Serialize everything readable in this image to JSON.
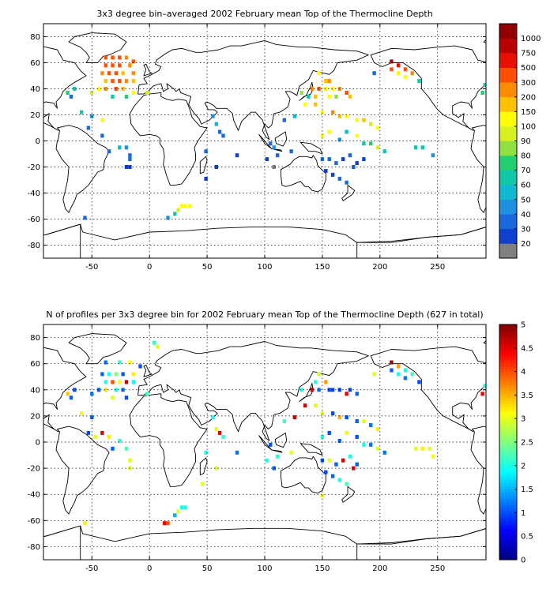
{
  "chart_data": [
    {
      "type": "heatmap",
      "title": "3x3 degree bin–averaged 2002 February mean Top of the Thermocline Depth",
      "xlim": [
        -92,
        292
      ],
      "ylim": [
        -90,
        90
      ],
      "xticks": [
        -50,
        0,
        50,
        100,
        150,
        200,
        250
      ],
      "yticks": [
        -80,
        -60,
        -40,
        -20,
        0,
        20,
        40,
        60,
        80
      ],
      "grid": true,
      "colorbar": {
        "position": "right",
        "labels": [
          "20",
          "30",
          "40",
          "50",
          "60",
          "70",
          "80",
          "90",
          "100",
          "150",
          "200",
          "300",
          "500",
          "750",
          "1000"
        ],
        "colors": [
          "#808080",
          "#1040d0",
          "#1a68dc",
          "#1e90e0",
          "#10b8d0",
          "#10c8a8",
          "#20d070",
          "#90e040",
          "#d8f020",
          "#ffff00",
          "#ffc000",
          "#ff8c00",
          "#ff5000",
          "#e81000",
          "#b80000",
          "#900000"
        ]
      },
      "cells": [
        [
          -38,
          64,
          12
        ],
        [
          -32,
          64,
          12
        ],
        [
          -26,
          64,
          12
        ],
        [
          -20,
          64,
          11
        ],
        [
          -14,
          61,
          12
        ],
        [
          -38,
          58,
          12
        ],
        [
          -32,
          58,
          12
        ],
        [
          -26,
          58,
          12
        ],
        [
          -17,
          58,
          11
        ],
        [
          -41,
          52,
          11
        ],
        [
          -35,
          52,
          12
        ],
        [
          -29,
          52,
          12
        ],
        [
          -23,
          52,
          10
        ],
        [
          -14,
          52,
          11
        ],
        [
          -38,
          46,
          10
        ],
        [
          -32,
          46,
          12
        ],
        [
          -26,
          46,
          12
        ],
        [
          -20,
          46,
          11
        ],
        [
          -14,
          46,
          10
        ],
        [
          -44,
          40,
          9
        ],
        [
          -38,
          40,
          11
        ],
        [
          -29,
          40,
          12
        ],
        [
          -23,
          40,
          10
        ],
        [
          -65,
          40,
          5
        ],
        [
          -71,
          37,
          6
        ],
        [
          -68,
          34,
          2
        ],
        [
          -50,
          37,
          8
        ],
        [
          -32,
          34,
          5
        ],
        [
          -20,
          34,
          6
        ],
        [
          -14,
          37,
          9
        ],
        [
          -2,
          37,
          8
        ],
        [
          -59,
          22,
          5
        ],
        [
          -50,
          19,
          3
        ],
        [
          -41,
          16,
          9
        ],
        [
          -53,
          10,
          2
        ],
        [
          -41,
          4,
          2
        ],
        [
          -26,
          -5,
          4
        ],
        [
          -20,
          -5,
          3
        ],
        [
          -35,
          -8,
          2
        ],
        [
          -17,
          -11,
          2
        ],
        [
          -17,
          -14,
          2
        ],
        [
          -20,
          -20,
          1
        ],
        [
          -17,
          -20,
          1
        ],
        [
          55,
          19,
          3
        ],
        [
          58,
          13,
          4
        ],
        [
          61,
          7,
          2
        ],
        [
          64,
          4,
          2
        ],
        [
          49,
          -8,
          2
        ],
        [
          76,
          -11,
          1
        ],
        [
          58,
          -20,
          1
        ],
        [
          49,
          -29,
          1
        ],
        [
          28,
          -50,
          9
        ],
        [
          31,
          -50,
          9
        ],
        [
          35,
          -50,
          9
        ],
        [
          25,
          -53,
          8
        ],
        [
          22,
          -56,
          5
        ],
        [
          16,
          -59,
          3
        ],
        [
          -56,
          -59,
          2
        ],
        [
          147,
          52,
          9
        ],
        [
          153,
          46,
          10
        ],
        [
          156,
          46,
          11
        ],
        [
          141,
          40,
          11
        ],
        [
          147,
          40,
          12
        ],
        [
          153,
          40,
          9
        ],
        [
          159,
          40,
          9
        ],
        [
          165,
          40,
          11
        ],
        [
          171,
          37,
          12
        ],
        [
          132,
          37,
          7
        ],
        [
          138,
          34,
          5
        ],
        [
          144,
          34,
          10
        ],
        [
          156,
          34,
          9
        ],
        [
          162,
          34,
          7
        ],
        [
          174,
          34,
          10
        ],
        [
          135,
          28,
          9
        ],
        [
          144,
          28,
          10
        ],
        [
          150,
          22,
          9
        ],
        [
          159,
          22,
          11
        ],
        [
          165,
          19,
          10
        ],
        [
          171,
          19,
          9
        ],
        [
          180,
          16,
          9
        ],
        [
          186,
          16,
          10
        ],
        [
          192,
          13,
          8
        ],
        [
          198,
          10,
          9
        ],
        [
          150,
          4,
          9
        ],
        [
          156,
          7,
          9
        ],
        [
          171,
          7,
          4
        ],
        [
          165,
          1,
          3
        ],
        [
          180,
          4,
          9
        ],
        [
          186,
          -2,
          5
        ],
        [
          192,
          -2,
          6
        ],
        [
          198,
          -5,
          8
        ],
        [
          204,
          -8,
          5
        ],
        [
          150,
          -14,
          2
        ],
        [
          156,
          -14,
          2
        ],
        [
          162,
          -17,
          2
        ],
        [
          168,
          -14,
          1
        ],
        [
          174,
          -11,
          2
        ],
        [
          180,
          -17,
          1
        ],
        [
          153,
          -23,
          1
        ],
        [
          159,
          -26,
          1
        ],
        [
          165,
          -29,
          2
        ],
        [
          171,
          -32,
          2
        ],
        [
          177,
          -20,
          2
        ],
        [
          186,
          -14,
          1
        ],
        [
          123,
          -8,
          2
        ],
        [
          111,
          -11,
          2
        ],
        [
          108,
          -5,
          3
        ],
        [
          105,
          -2,
          2
        ],
        [
          102,
          -14,
          1
        ],
        [
          108,
          -20,
          0
        ],
        [
          117,
          16,
          2
        ],
        [
          126,
          19,
          4
        ],
        [
          195,
          52,
          2
        ],
        [
          210,
          61,
          14
        ],
        [
          216,
          58,
          13
        ],
        [
          222,
          55,
          12
        ],
        [
          228,
          52,
          11
        ],
        [
          210,
          55,
          12
        ],
        [
          216,
          52,
          9
        ],
        [
          222,
          49,
          9
        ],
        [
          234,
          46,
          5
        ],
        [
          231,
          -5,
          5
        ],
        [
          237,
          -5,
          5
        ],
        [
          246,
          -11,
          3
        ],
        [
          291,
          43,
          5
        ],
        [
          289,
          37,
          6
        ]
      ]
    },
    {
      "type": "heatmap",
      "title": "N of profiles per 3x3 degree bin for 2002 February mean Top of the Thermocline Depth  (627 in total)",
      "xlim": [
        -92,
        292
      ],
      "ylim": [
        -90,
        90
      ],
      "xticks": [
        -50,
        0,
        50,
        100,
        150,
        200,
        250
      ],
      "yticks": [
        -80,
        -60,
        -40,
        -20,
        0,
        20,
        40,
        60,
        80
      ],
      "grid": true,
      "colorbar": {
        "position": "right",
        "min": 0,
        "max": 5,
        "labels": [
          "0",
          "0.5",
          "1",
          "1.5",
          "2",
          "2.5",
          "3",
          "3.5",
          "4",
          "4.5",
          "5"
        ]
      },
      "cells": [
        [
          -38,
          61,
          1.2
        ],
        [
          -26,
          61,
          2.1
        ],
        [
          -17,
          61,
          3.1
        ],
        [
          -8,
          58,
          1.0
        ],
        [
          -41,
          52,
          1.1
        ],
        [
          -35,
          52,
          2.0
        ],
        [
          -29,
          52,
          2.5
        ],
        [
          -23,
          52,
          1.1
        ],
        [
          -14,
          52,
          3.2
        ],
        [
          -38,
          46,
          2.0
        ],
        [
          -32,
          46,
          4.0
        ],
        [
          -26,
          46,
          3.1
        ],
        [
          -20,
          46,
          4.6
        ],
        [
          -14,
          46,
          1.9
        ],
        [
          -44,
          40,
          1.1
        ],
        [
          -38,
          40,
          3.3
        ],
        [
          -29,
          40,
          2.0
        ],
        [
          -23,
          40,
          1.2
        ],
        [
          -65,
          40,
          1.0
        ],
        [
          -71,
          37,
          3.4
        ],
        [
          -68,
          34,
          1.1
        ],
        [
          -50,
          37,
          1.2
        ],
        [
          -32,
          34,
          3.0
        ],
        [
          -20,
          34,
          1.0
        ],
        [
          -2,
          37,
          2.2
        ],
        [
          -59,
          22,
          3.1
        ],
        [
          -50,
          19,
          1.1
        ],
        [
          -41,
          7,
          4.6
        ],
        [
          -53,
          7,
          1.0
        ],
        [
          -47,
          4,
          3.0
        ],
        [
          -35,
          4,
          3.2
        ],
        [
          -26,
          1,
          2.1
        ],
        [
          -32,
          -5,
          1.1
        ],
        [
          -20,
          -5,
          2.2
        ],
        [
          -17,
          -14,
          3.0
        ],
        [
          -17,
          -20,
          2.9
        ],
        [
          4,
          76,
          2.1
        ],
        [
          7,
          73,
          3.0
        ],
        [
          55,
          19,
          2.0
        ],
        [
          58,
          10,
          3.0
        ],
        [
          61,
          7,
          4.5
        ],
        [
          64,
          4,
          2.1
        ],
        [
          49,
          -8,
          2.0
        ],
        [
          76,
          -8,
          1.2
        ],
        [
          58,
          -20,
          3.0
        ],
        [
          46,
          -32,
          3.0
        ],
        [
          28,
          -50,
          2.0
        ],
        [
          31,
          -50,
          2.0
        ],
        [
          25,
          -53,
          3.0
        ],
        [
          22,
          -56,
          1.5
        ],
        [
          16,
          -62,
          4.0
        ],
        [
          13,
          -62,
          4.4
        ],
        [
          -56,
          -62,
          3.2
        ],
        [
          147,
          52,
          2.9
        ],
        [
          153,
          46,
          3.6
        ],
        [
          144,
          46,
          2.0
        ],
        [
          156,
          40,
          1.0
        ],
        [
          132,
          40,
          2.0
        ],
        [
          141,
          40,
          4.6
        ],
        [
          147,
          40,
          1.2
        ],
        [
          159,
          40,
          1.0
        ],
        [
          165,
          40,
          1.0
        ],
        [
          171,
          37,
          4.5
        ],
        [
          174,
          40,
          1.0
        ],
        [
          180,
          37,
          1.1
        ],
        [
          135,
          28,
          4.6
        ],
        [
          144,
          28,
          3.0
        ],
        [
          150,
          22,
          3.0
        ],
        [
          159,
          22,
          1.0
        ],
        [
          165,
          19,
          3.5
        ],
        [
          171,
          19,
          1.0
        ],
        [
          180,
          16,
          1.1
        ],
        [
          186,
          16,
          3.0
        ],
        [
          192,
          13,
          1.2
        ],
        [
          198,
          10,
          3.2
        ],
        [
          150,
          4,
          2.0
        ],
        [
          156,
          7,
          1.0
        ],
        [
          171,
          7,
          3.0
        ],
        [
          165,
          1,
          1.1
        ],
        [
          180,
          4,
          1.0
        ],
        [
          186,
          -2,
          2.0
        ],
        [
          192,
          -2,
          1.2
        ],
        [
          198,
          -5,
          3.0
        ],
        [
          204,
          -8,
          1.2
        ],
        [
          150,
          -14,
          1.0
        ],
        [
          156,
          -14,
          3.0
        ],
        [
          162,
          -17,
          1.1
        ],
        [
          168,
          -14,
          4.6
        ],
        [
          174,
          -11,
          2.0
        ],
        [
          180,
          -17,
          1.1
        ],
        [
          153,
          -23,
          1.0
        ],
        [
          159,
          -26,
          1.1
        ],
        [
          165,
          -29,
          2.0
        ],
        [
          171,
          -32,
          2.2
        ],
        [
          177,
          -20,
          4.5
        ],
        [
          123,
          -8,
          3.0
        ],
        [
          111,
          -11,
          2.1
        ],
        [
          105,
          -2,
          1.0
        ],
        [
          102,
          -14,
          2.0
        ],
        [
          108,
          -20,
          1.1
        ],
        [
          117,
          16,
          2.2
        ],
        [
          126,
          19,
          4.6
        ],
        [
          195,
          52,
          3.0
        ],
        [
          210,
          61,
          4.8
        ],
        [
          216,
          58,
          3.6
        ],
        [
          222,
          55,
          2.0
        ],
        [
          228,
          52,
          2.2
        ],
        [
          210,
          55,
          1.1
        ],
        [
          216,
          52,
          2.0
        ],
        [
          222,
          49,
          1.2
        ],
        [
          234,
          46,
          1.0
        ],
        [
          231,
          -5,
          3.0
        ],
        [
          237,
          -5,
          3.2
        ],
        [
          246,
          -11,
          3.1
        ],
        [
          243,
          -5,
          3.0
        ],
        [
          291,
          43,
          2.0
        ],
        [
          289,
          37,
          4.5
        ],
        [
          150,
          -41,
          3.1
        ]
      ]
    }
  ]
}
